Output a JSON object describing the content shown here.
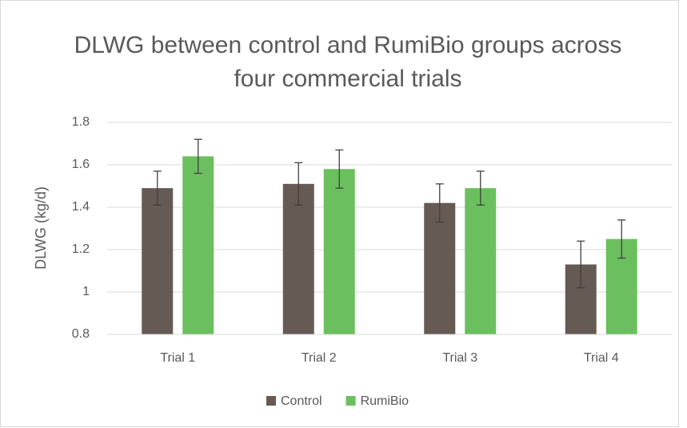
{
  "chart_data": {
    "type": "bar",
    "title": "DLWG between control and RumiBio groups across four commercial trials",
    "y_label": "DLWG (kg/d)",
    "categories": [
      "Trial 1",
      "Trial 2",
      "Trial 3",
      "Trial 4"
    ],
    "series": [
      {
        "name": "Control",
        "color": "#665a54",
        "values": [
          1.49,
          1.51,
          1.42,
          1.13
        ],
        "errors": [
          0.08,
          0.1,
          0.09,
          0.11
        ]
      },
      {
        "name": "RumiBio",
        "color": "#6cbf5f",
        "values": [
          1.64,
          1.58,
          1.49,
          1.25
        ],
        "errors": [
          0.08,
          0.09,
          0.08,
          0.09
        ]
      }
    ],
    "ylim": [
      0.8,
      1.8
    ],
    "yticks": [
      0.8,
      1,
      1.2,
      1.4,
      1.6,
      1.8
    ],
    "grid": true,
    "legend": "bottom"
  }
}
